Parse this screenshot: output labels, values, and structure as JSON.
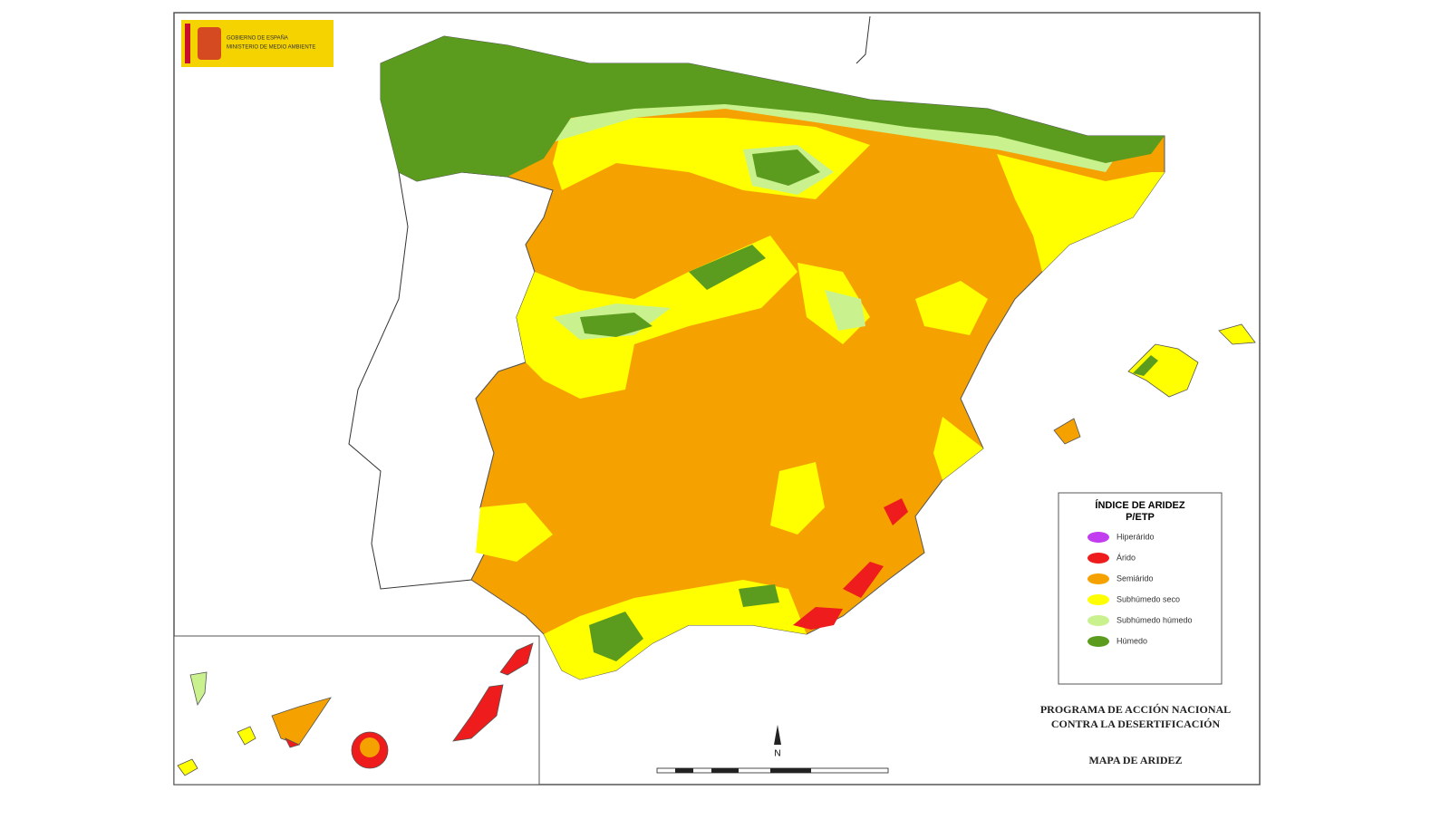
{
  "header": {
    "logo_line1": "GOBIERNO DE ESPAÑA",
    "logo_line2": "MINISTERIO DE MEDIO AMBIENTE"
  },
  "legend": {
    "title": "ÍNDICE DE ARIDEZ",
    "subtitle": "P/ETP",
    "items": [
      {
        "label": "Hiperárido",
        "color": "#c23cf0"
      },
      {
        "label": "Árido",
        "color": "#ee1c1c"
      },
      {
        "label": "Semiárido",
        "color": "#f5a200"
      },
      {
        "label": "Subhúmedo seco",
        "color": "#ffff00"
      },
      {
        "label": "Subhúmedo húmedo",
        "color": "#c9f28f"
      },
      {
        "label": "Húmedo",
        "color": "#5b9c1e"
      }
    ]
  },
  "footer": {
    "program_line1": "PROGRAMA DE ACCIÓN NACIONAL",
    "program_line2": "CONTRA LA DESERTIFICACIÓN",
    "map_title": "MAPA DE ARIDEZ"
  },
  "north": "N"
}
